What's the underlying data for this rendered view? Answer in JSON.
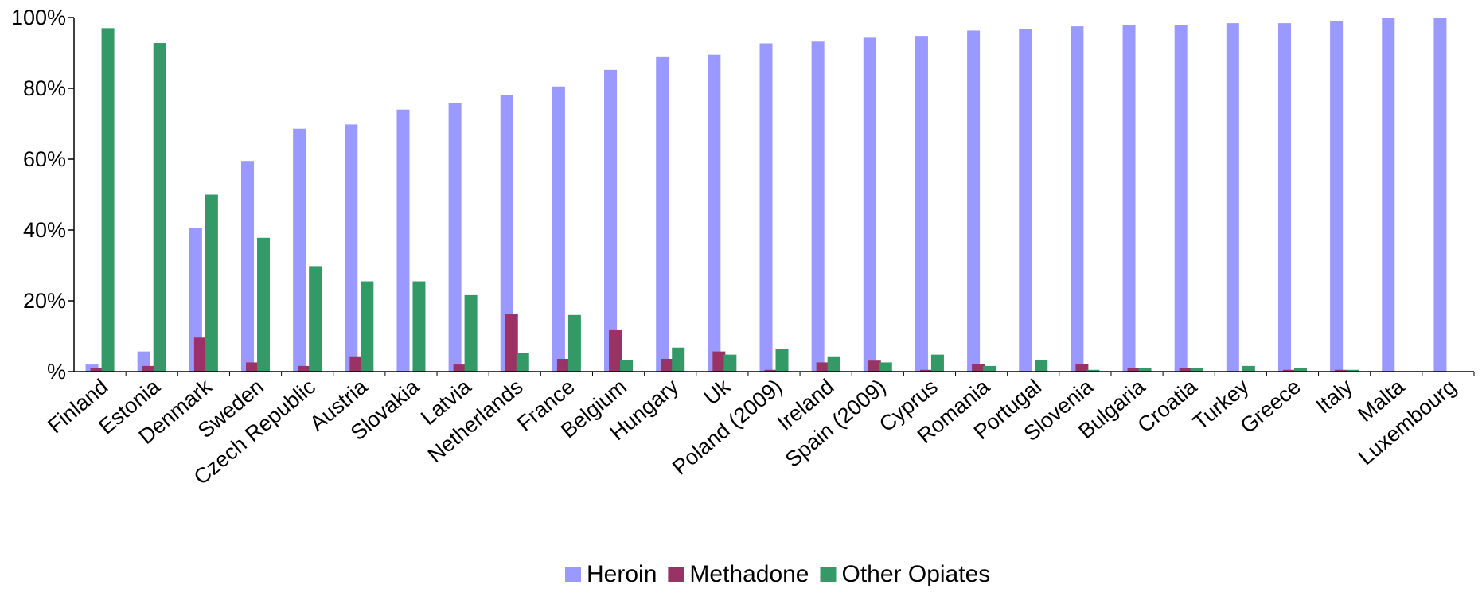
{
  "chart_data": {
    "type": "bar",
    "title": "",
    "xlabel": "",
    "ylabel": "",
    "ylim": [
      0,
      100
    ],
    "y_ticks": [
      {
        "value": 0,
        "label": "%"
      },
      {
        "value": 20,
        "label": "20%"
      },
      {
        "value": 40,
        "label": "40%"
      },
      {
        "value": 60,
        "label": "60%"
      },
      {
        "value": 80,
        "label": "80%"
      },
      {
        "value": 100,
        "label": "100%"
      }
    ],
    "grid": false,
    "legend_position": "bottom",
    "categories": [
      "Finland",
      "Estonia",
      "Denmark",
      "Sweden",
      "Czech Republic",
      "Austria",
      "Slovakia",
      "Latvia",
      "Netherlands",
      "France",
      "Belgium",
      "Hungary",
      "Uk",
      "Poland (2009)",
      "Ireland",
      "Spain (2009)",
      "Cyprus",
      "Romania",
      "Portugal",
      "Slovenia",
      "Bulgaria",
      "Croatia",
      "Turkey",
      "Greece",
      "Italy",
      "Malta",
      "Luxembourg"
    ],
    "series": [
      {
        "name": "Heroin",
        "color": "#9999ff",
        "values": [
          2.0,
          5.7,
          40.5,
          59.5,
          68.6,
          69.8,
          74.0,
          75.8,
          78.2,
          80.5,
          85.2,
          88.8,
          89.5,
          92.7,
          93.2,
          94.3,
          94.8,
          96.3,
          96.8,
          97.5,
          97.9,
          97.9,
          98.4,
          98.4,
          99.0,
          100.0,
          100.0
        ]
      },
      {
        "name": "Methadone",
        "color": "#993366",
        "values": [
          1.0,
          1.6,
          9.6,
          2.6,
          1.6,
          4.1,
          0.0,
          2.0,
          16.4,
          3.6,
          11.7,
          3.6,
          5.7,
          0.5,
          2.6,
          3.1,
          0.5,
          2.1,
          0.0,
          2.1,
          1.0,
          1.0,
          0.0,
          0.5,
          0.5,
          0.0,
          0.0
        ]
      },
      {
        "name": "Other Opiates",
        "color": "#339966",
        "values": [
          97.0,
          92.8,
          50.0,
          37.8,
          29.8,
          25.5,
          25.5,
          21.6,
          5.2,
          16.0,
          3.2,
          6.8,
          4.8,
          6.3,
          4.1,
          2.6,
          4.8,
          1.6,
          3.2,
          0.5,
          1.0,
          1.0,
          1.6,
          1.0,
          0.5,
          0.0,
          0.0
        ]
      }
    ]
  }
}
